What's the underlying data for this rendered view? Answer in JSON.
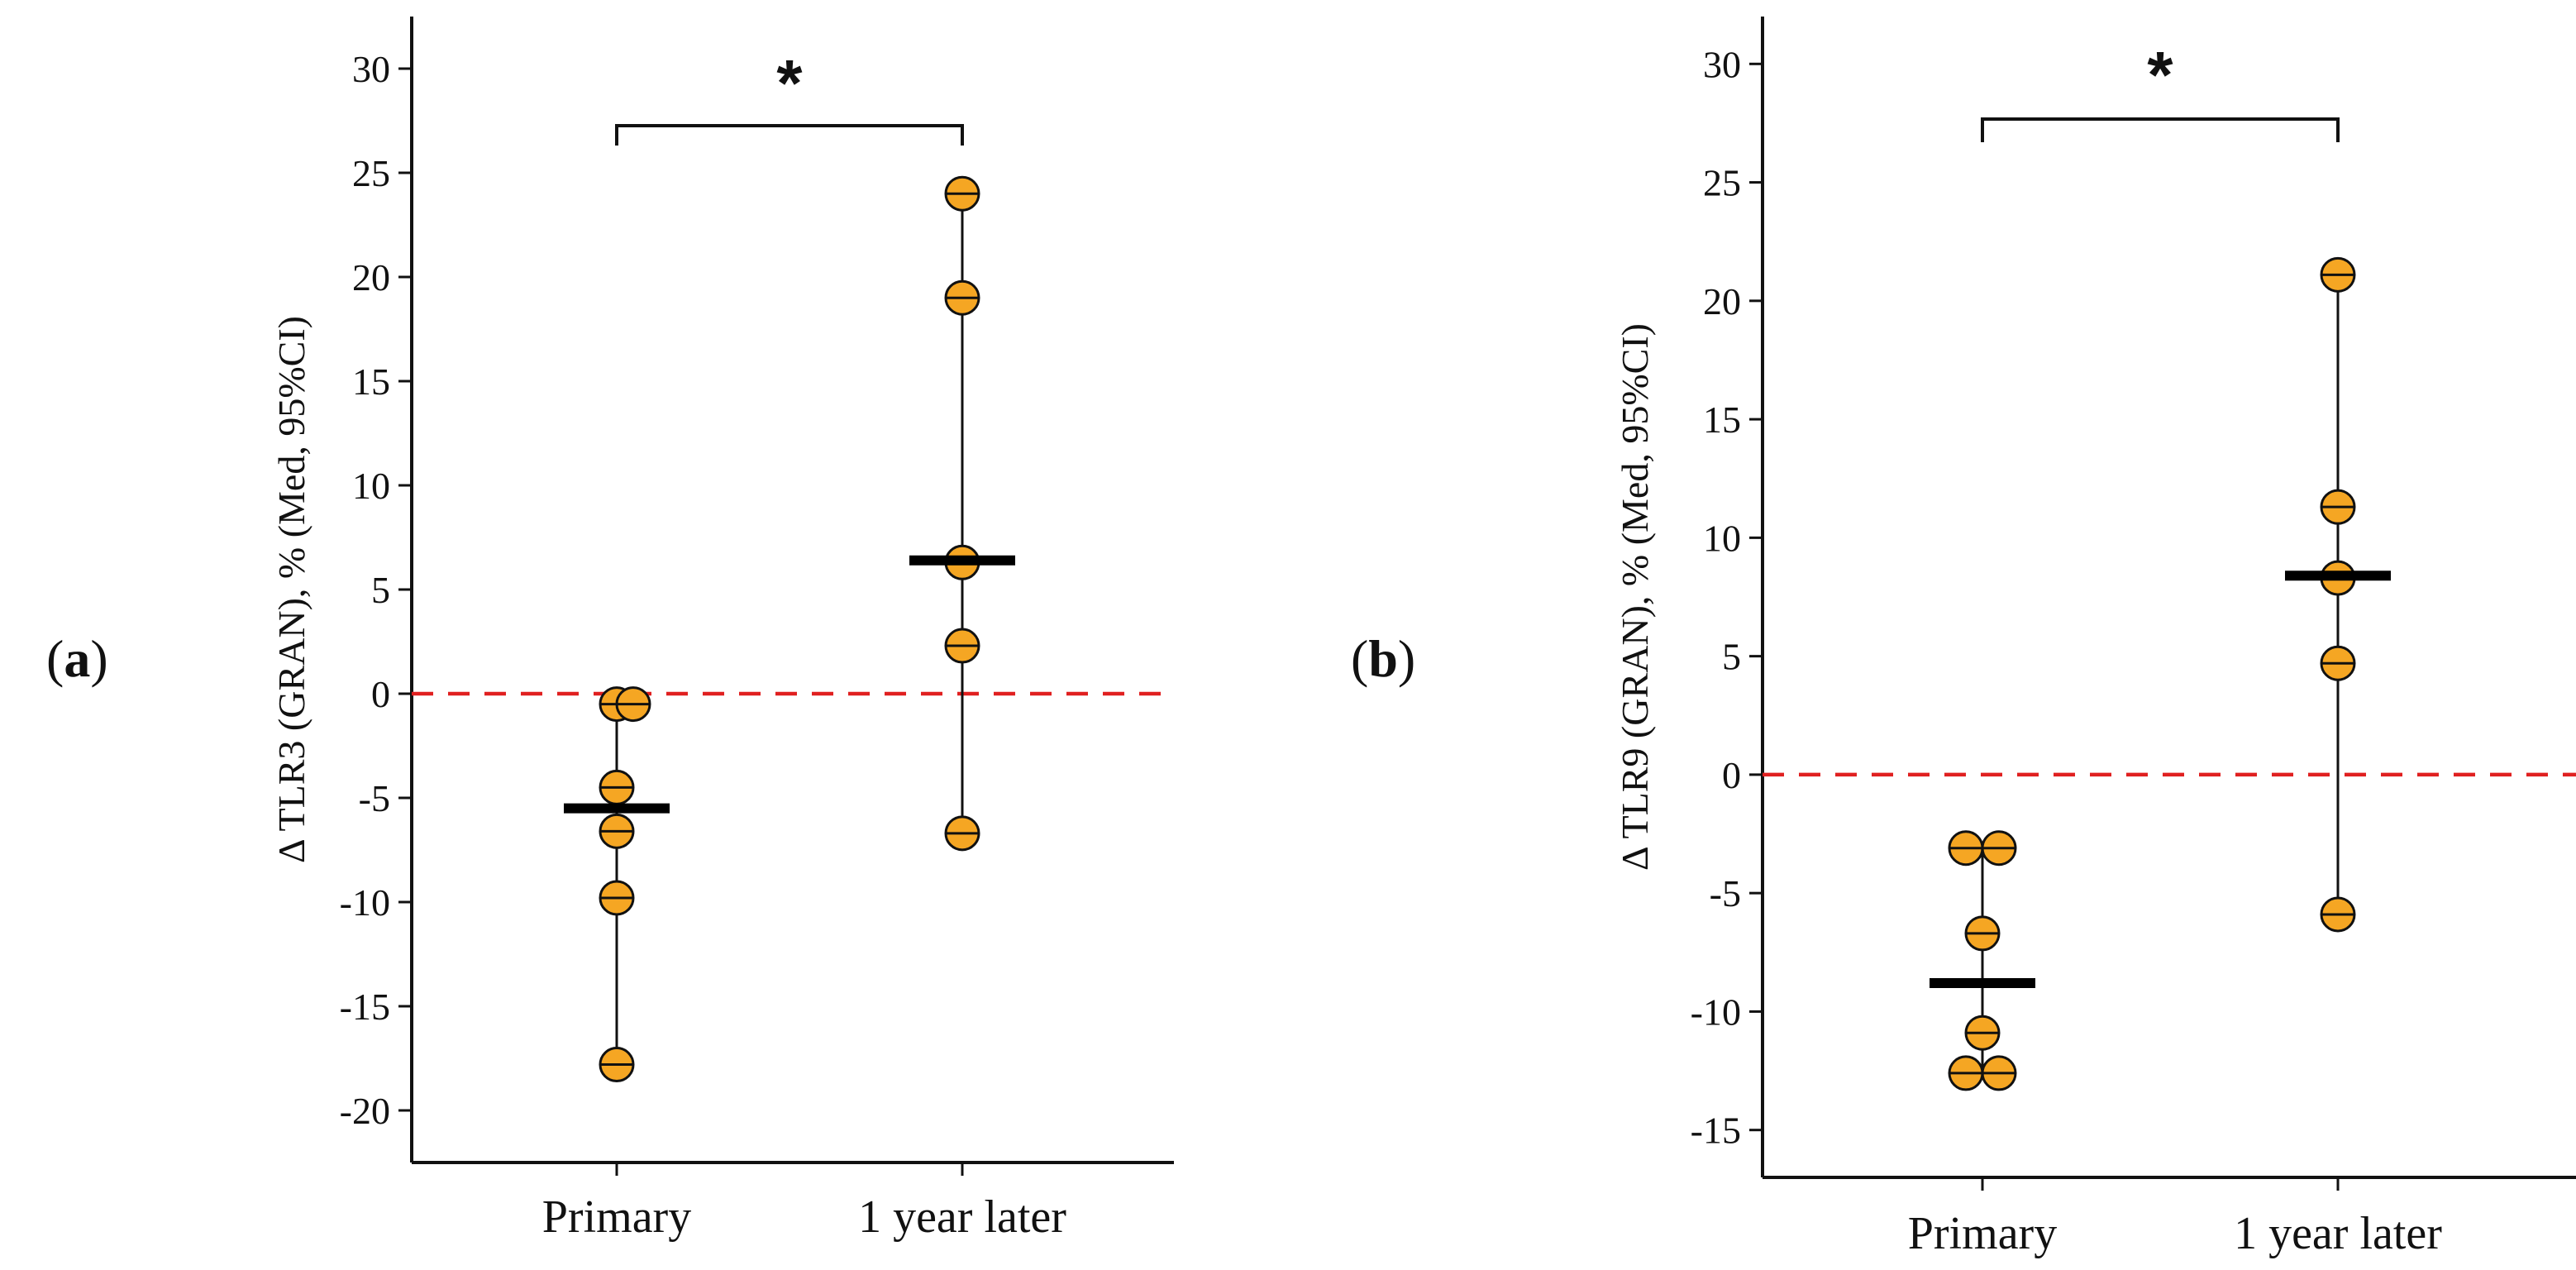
{
  "chart_data": [
    {
      "type": "scatter",
      "panel_label": "a",
      "ylabel": "Δ TLR3 (GRAN), % (Med, 95%CI)",
      "categories": [
        "Primary",
        "1 year later"
      ],
      "ylim": [
        -22.5,
        32.5
      ],
      "yticks": [
        30,
        25,
        20,
        15,
        10,
        5,
        0,
        -5,
        -10,
        -15,
        -20
      ],
      "ytick_labels": [
        "30",
        "25",
        "20",
        "15",
        "10",
        "5",
        "0",
        "-5",
        "-10",
        "-15",
        "-20"
      ],
      "reference_line": 0,
      "significance": "*",
      "series": [
        {
          "name": "Primary",
          "points": [
            {
              "x_offset": 0,
              "value": -0.5
            },
            {
              "x_offset": 1,
              "value": -0.5
            },
            {
              "x_offset": 0,
              "value": -4.5
            },
            {
              "x_offset": 0,
              "value": -6.6
            },
            {
              "x_offset": 0,
              "value": -9.8
            },
            {
              "x_offset": 0,
              "value": -17.8
            }
          ],
          "median": -5.5,
          "ci": [
            -17.8,
            -0.5
          ]
        },
        {
          "name": "1 year later",
          "points": [
            {
              "x_offset": 0,
              "value": 24
            },
            {
              "x_offset": 0,
              "value": 19
            },
            {
              "x_offset": 0,
              "value": 6.3
            },
            {
              "x_offset": 0,
              "value": 2.3
            },
            {
              "x_offset": 0,
              "value": -6.7
            }
          ],
          "median": 6.4,
          "ci": [
            -6.7,
            24
          ]
        }
      ]
    },
    {
      "type": "scatter",
      "panel_label": "b",
      "ylabel": "Δ TLR9 (GRAN), % (Med, 95%CI)",
      "categories": [
        "Primary",
        "1 year later"
      ],
      "ylim": [
        -17,
        32
      ],
      "yticks": [
        30,
        25,
        20,
        15,
        10,
        5,
        0,
        -5,
        -10,
        -15
      ],
      "ytick_labels": [
        "30",
        "25",
        "20",
        "15",
        "10",
        "5",
        "0",
        "-5",
        "-10",
        "-15"
      ],
      "reference_line": 0,
      "significance": "*",
      "series": [
        {
          "name": "Primary",
          "points": [
            {
              "x_offset": -1,
              "value": -3.1
            },
            {
              "x_offset": 1,
              "value": -3.1
            },
            {
              "x_offset": 0,
              "value": -6.7
            },
            {
              "x_offset": 0,
              "value": -10.9
            },
            {
              "x_offset": -1,
              "value": -12.6
            },
            {
              "x_offset": 1,
              "value": -12.6
            }
          ],
          "median": -8.8,
          "ci": [
            -12.6,
            -3.1
          ]
        },
        {
          "name": "1 year later",
          "points": [
            {
              "x_offset": 0,
              "value": 21.1
            },
            {
              "x_offset": 0,
              "value": 11.3
            },
            {
              "x_offset": 0,
              "value": 8.3
            },
            {
              "x_offset": 0,
              "value": 4.7
            },
            {
              "x_offset": 0,
              "value": -5.9
            }
          ],
          "median": 8.4,
          "ci": [
            -5.9,
            21.1
          ]
        }
      ]
    }
  ],
  "colors": {
    "point_fill": "#F5A623",
    "point_stroke": "#111111",
    "median_bar": "#000000",
    "reference_line": "#E02020",
    "axis": "#111111"
  }
}
